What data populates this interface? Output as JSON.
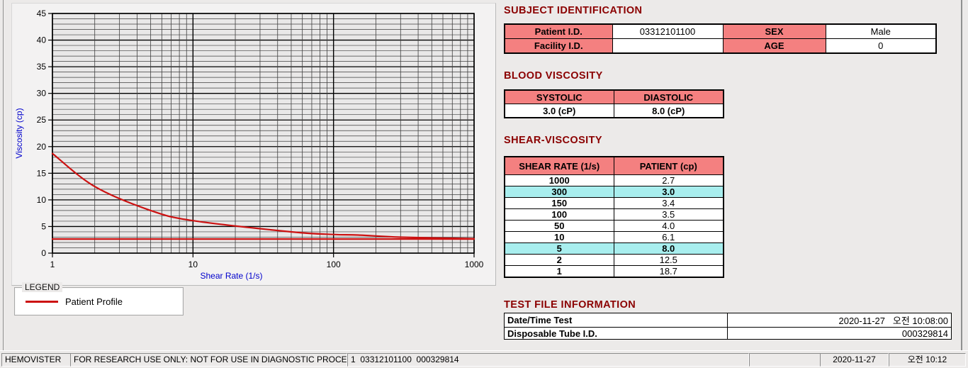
{
  "colors": {
    "accent_maroon": "#8B0000",
    "table_header_pink": "#F48080",
    "highlight_cyan": "#A8EEEE",
    "curve_red": "#CC1111",
    "axis_label_blue": "#0000CC",
    "window_bg": "#ECEAE9"
  },
  "chart_data": {
    "type": "line",
    "x_scale": "log",
    "xlabel": "Shear Rate (1/s)",
    "ylabel": "Viscosity (cp)",
    "xlim": [
      1,
      1000
    ],
    "ylim": [
      0,
      45
    ],
    "x_major_ticks": [
      1,
      10,
      100,
      1000
    ],
    "y_major_ticks": [
      0,
      5,
      10,
      15,
      20,
      25,
      30,
      35,
      40,
      45
    ],
    "y_minor_step": 1,
    "grid": "major+minor, black on light gray",
    "legend_position": "separate LEGEND group box below chart",
    "series": [
      {
        "name": "Patient Profile",
        "color": "#CC1111",
        "x": [
          1,
          2,
          5,
          10,
          50,
          100,
          150,
          300,
          1000
        ],
        "y": [
          18.7,
          12.5,
          8.0,
          6.1,
          4.0,
          3.5,
          3.4,
          3.0,
          2.7
        ]
      },
      {
        "name": "High-shear asymptote line",
        "color": "#CC1111",
        "x": [
          1,
          1000
        ],
        "y": [
          2.65,
          2.65
        ]
      }
    ]
  },
  "legend": {
    "box_title": "LEGEND",
    "entry": "Patient Profile",
    "line_color": "#CC1111"
  },
  "sections": {
    "subject": {
      "title": "SUBJECT IDENTIFICATION",
      "patient_id_label": "Patient I.D.",
      "patient_id_value": "03312101100",
      "sex_label": "SEX",
      "sex_value": "Male",
      "facility_id_label": "Facility I.D.",
      "facility_id_value": "",
      "age_label": "AGE",
      "age_value": "0"
    },
    "blood": {
      "title": "BLOOD VISCOSITY",
      "headers": [
        "SYSTOLIC",
        "DIASTOLIC"
      ],
      "values": [
        "3.0 (cP)",
        "8.0 (cP)"
      ]
    },
    "shear": {
      "title": "SHEAR-VISCOSITY",
      "headers": [
        "SHEAR RATE (1/s)",
        "PATIENT (cp)"
      ],
      "rows": [
        {
          "rate": "1000",
          "value": "2.7",
          "highlight": false
        },
        {
          "rate": "300",
          "value": "3.0",
          "highlight": true
        },
        {
          "rate": "150",
          "value": "3.4",
          "highlight": false
        },
        {
          "rate": "100",
          "value": "3.5",
          "highlight": false
        },
        {
          "rate": "50",
          "value": "4.0",
          "highlight": false
        },
        {
          "rate": "10",
          "value": "6.1",
          "highlight": false
        },
        {
          "rate": "5",
          "value": "8.0",
          "highlight": true
        },
        {
          "rate": "2",
          "value": "12.5",
          "highlight": false
        },
        {
          "rate": "1",
          "value": "18.7",
          "highlight": false
        }
      ]
    },
    "test_file": {
      "title": "TEST FILE INFORMATION",
      "rows": [
        {
          "label": "Date/Time Test",
          "value": "2020-11-27   오전 10:08:00"
        },
        {
          "label": "Disposable Tube I.D.",
          "value": "000329814"
        }
      ]
    }
  },
  "status_bar": {
    "app_name": "HEMOVISTER",
    "notice": "FOR RESEARCH USE ONLY: NOT FOR USE IN DIAGNOSTIC PROCEDURES",
    "record": "1  03312101100  000329814",
    "date": "2020-11-27",
    "time": "오전 10:12"
  }
}
